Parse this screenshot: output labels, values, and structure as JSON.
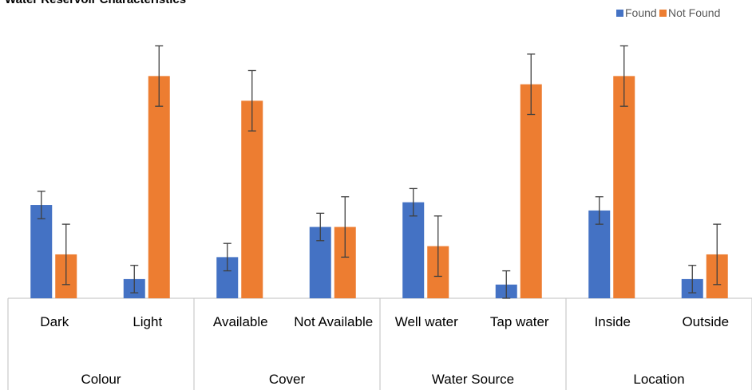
{
  "chart_data": {
    "type": "bar",
    "title": "Water Reservoir Characteristics",
    "categories": [
      "Dark",
      "Light",
      "Available",
      "Not Available",
      "Well water",
      "Tap water",
      "Inside",
      "Outside"
    ],
    "groups": [
      "Colour",
      "Cover",
      "Water Source",
      "Location"
    ],
    "series": [
      {
        "name": "Found",
        "color": "#4472c4",
        "values": [
          34,
          7,
          15,
          26,
          35,
          5,
          32,
          7
        ],
        "errors": [
          5,
          5,
          5,
          5,
          5,
          5,
          5,
          5
        ]
      },
      {
        "name": "Not Found",
        "color": "#ed7d31",
        "values": [
          16,
          81,
          72,
          26,
          19,
          78,
          81,
          16
        ],
        "errors": [
          11,
          11,
          11,
          11,
          11,
          11,
          11,
          11
        ]
      }
    ],
    "ylim": [
      0,
      100
    ],
    "legend": "top-right"
  }
}
